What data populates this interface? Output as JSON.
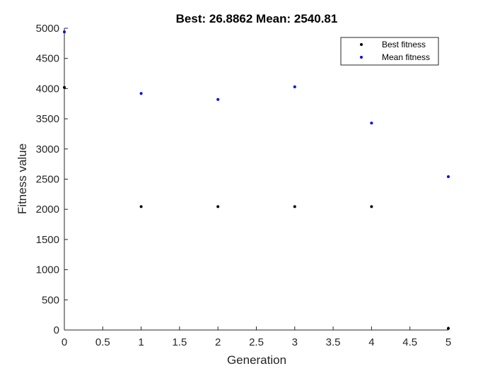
{
  "chart_data": {
    "type": "scatter",
    "title": "Best: 26.8862 Mean: 2540.81",
    "xlabel": "Generation",
    "ylabel": "Fitness value",
    "xlim": [
      0,
      5
    ],
    "ylim": [
      0,
      5000
    ],
    "xticks": [
      "0",
      "0.5",
      "1",
      "1.5",
      "2",
      "2.5",
      "3",
      "3.5",
      "4",
      "4.5",
      "5"
    ],
    "yticks": [
      "0",
      "500",
      "1000",
      "1500",
      "2000",
      "2500",
      "3000",
      "3500",
      "4000",
      "4500",
      "5000"
    ],
    "grid": false,
    "legend_position": "top-right",
    "series": [
      {
        "name": "Best fitness",
        "color": "#000000",
        "x": [
          0,
          1,
          2,
          3,
          4,
          5
        ],
        "y": [
          4020,
          2045,
          2045,
          2045,
          2045,
          26.8862
        ]
      },
      {
        "name": "Mean fitness",
        "color": "#0000ff",
        "x": [
          0,
          1,
          2,
          3,
          4,
          5
        ],
        "y": [
          4940,
          3920,
          3820,
          4030,
          3430,
          2540.81
        ]
      }
    ]
  }
}
